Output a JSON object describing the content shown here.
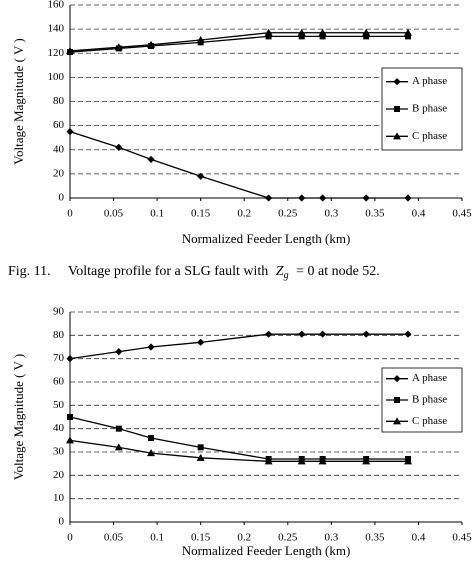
{
  "chart_data": [
    {
      "type": "line",
      "x": [
        0,
        0.056,
        0.093,
        0.15,
        0.228,
        0.266,
        0.29,
        0.34,
        0.388
      ],
      "series": [
        {
          "name": "A phase",
          "color": "#000000",
          "marker": "diamond",
          "values": [
            55,
            42,
            32,
            18,
            0,
            0,
            0,
            0,
            0
          ]
        },
        {
          "name": "B phase",
          "color": "#000000",
          "marker": "square",
          "values": [
            121,
            124,
            126,
            129,
            134,
            134,
            134,
            134,
            134
          ]
        },
        {
          "name": "C phase",
          "color": "#000000",
          "marker": "triangle",
          "values": [
            122,
            125,
            127,
            131,
            137,
            137,
            137,
            137,
            137
          ]
        }
      ],
      "xlim": [
        0,
        0.45
      ],
      "xticks": [
        0,
        0.05,
        0.1,
        0.15,
        0.2,
        0.25,
        0.3,
        0.35,
        0.4,
        0.45
      ],
      "ylim": [
        0,
        160
      ],
      "yticks": [
        0,
        20,
        40,
        60,
        80,
        100,
        120,
        140,
        160
      ],
      "x_label": "Normalized Feeder Length (km)",
      "y_label": "Voltage Magnitude ( V )",
      "grid": true,
      "legend": "right"
    },
    {
      "type": "line",
      "x": [
        0,
        0.056,
        0.093,
        0.15,
        0.228,
        0.266,
        0.29,
        0.34,
        0.388
      ],
      "series": [
        {
          "name": "A phase",
          "color": "#000000",
          "marker": "diamond",
          "values": [
            70,
            73,
            75,
            77,
            80.5,
            80.5,
            80.5,
            80.5,
            80.5
          ]
        },
        {
          "name": "B phase",
          "color": "#000000",
          "marker": "square",
          "values": [
            45,
            40,
            36,
            32,
            27,
            27,
            27,
            27,
            27
          ]
        },
        {
          "name": "C phase",
          "color": "#000000",
          "marker": "triangle",
          "values": [
            35,
            32,
            29.5,
            27.5,
            26,
            26,
            26,
            26,
            26
          ]
        }
      ],
      "xlim": [
        0,
        0.45
      ],
      "xticks": [
        0,
        0.05,
        0.1,
        0.15,
        0.2,
        0.25,
        0.3,
        0.35,
        0.4,
        0.45
      ],
      "ylim": [
        0,
        90
      ],
      "yticks": [
        0,
        10,
        20,
        30,
        40,
        50,
        60,
        70,
        80,
        90
      ],
      "x_label": "Normalized Feeder Length (km)",
      "y_label": "Voltage Magnitude ( V )",
      "grid": true,
      "legend": "right"
    }
  ],
  "caption": {
    "label": "Fig. 11.",
    "text_before": "Voltage profile for a SLG fault with",
    "symbol": "Z",
    "subscript": "g",
    "text_after": "= 0 at node 52."
  }
}
